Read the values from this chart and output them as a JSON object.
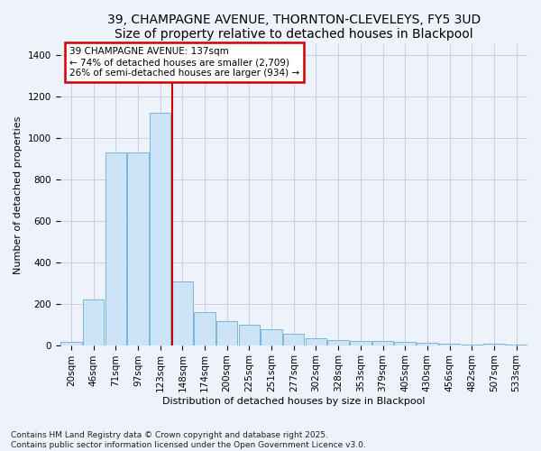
{
  "title": "39, CHAMPAGNE AVENUE, THORNTON-CLEVELEYS, FY5 3UD",
  "subtitle": "Size of property relative to detached houses in Blackpool",
  "xlabel": "Distribution of detached houses by size in Blackpool",
  "ylabel": "Number of detached properties",
  "footer": "Contains HM Land Registry data © Crown copyright and database right 2025.\nContains public sector information licensed under the Open Government Licence v3.0.",
  "categories": [
    "20sqm",
    "46sqm",
    "71sqm",
    "97sqm",
    "123sqm",
    "148sqm",
    "174sqm",
    "200sqm",
    "225sqm",
    "251sqm",
    "277sqm",
    "302sqm",
    "328sqm",
    "353sqm",
    "379sqm",
    "405sqm",
    "430sqm",
    "456sqm",
    "482sqm",
    "507sqm",
    "533sqm"
  ],
  "values": [
    15,
    220,
    930,
    930,
    1120,
    305,
    160,
    115,
    100,
    75,
    55,
    35,
    25,
    20,
    20,
    15,
    10,
    5,
    3,
    8,
    2
  ],
  "bar_color": "#cce4f5",
  "bar_edge_color": "#6baed6",
  "annotation_box_text": "39 CHAMPAGNE AVENUE: 137sqm\n← 74% of detached houses are smaller (2,709)\n26% of semi-detached houses are larger (934) →",
  "annotation_box_color": "#cc0000",
  "vline_x": 4.55,
  "vline_color": "#cc0000",
  "ylim": [
    0,
    1450
  ],
  "yticks": [
    0,
    200,
    400,
    600,
    800,
    1000,
    1200,
    1400
  ],
  "grid_color": "#c8d0e8",
  "background_color": "#eef2fa",
  "title_fontsize": 10,
  "axis_label_fontsize": 8,
  "tick_fontsize": 7.5,
  "annotation_fontsize": 7.5,
  "footer_fontsize": 6.5
}
